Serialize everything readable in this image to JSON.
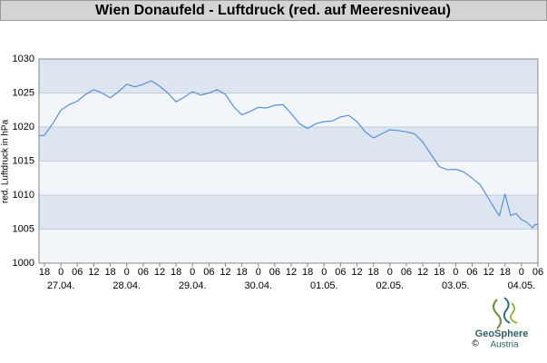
{
  "chart_data": {
    "type": "line",
    "title": "Wien Donaufeld - Luftdruck (red. auf Meeresniveau)",
    "y_label": "red. Luftdruck in hPa",
    "x": [
      -2,
      0,
      3,
      6,
      9,
      12,
      15,
      18,
      21,
      24,
      27,
      30,
      33,
      36,
      39,
      42,
      45,
      48,
      51,
      54,
      57,
      60,
      63,
      66,
      69,
      72,
      75,
      78,
      81,
      84,
      87,
      90,
      93,
      96,
      99,
      102,
      105,
      108,
      111,
      114,
      117,
      120,
      123,
      126,
      129,
      132,
      135,
      138,
      141,
      144,
      147,
      150,
      153,
      156,
      159,
      162,
      165,
      166,
      168,
      170,
      172,
      174,
      176,
      178,
      179,
      180
    ],
    "series": [
      {
        "name": "Luftdruck",
        "color": "#5b8fd8",
        "values": [
          1018.7,
          1018.8,
          1020.5,
          1022.5,
          1023.3,
          1023.8,
          1024.8,
          1025.5,
          1025.0,
          1024.3,
          1025.2,
          1026.3,
          1025.9,
          1026.3,
          1026.8,
          1026.0,
          1025.0,
          1023.7,
          1024.4,
          1025.2,
          1024.7,
          1025.0,
          1025.5,
          1024.8,
          1023.0,
          1021.8,
          1022.3,
          1022.9,
          1022.8,
          1023.2,
          1023.3,
          1022.0,
          1020.5,
          1019.8,
          1020.5,
          1020.8,
          1020.9,
          1021.5,
          1021.7,
          1020.8,
          1019.3,
          1018.4,
          1019.0,
          1019.6,
          1019.5,
          1019.3,
          1019.0,
          1017.8,
          1016.0,
          1014.2,
          1013.7,
          1013.8,
          1013.4,
          1012.5,
          1011.5,
          1009.5,
          1007.5,
          1007.0,
          1010.2,
          1007.0,
          1007.3,
          1006.4,
          1006.0,
          1005.2,
          1005.7,
          1005.6
        ]
      }
    ],
    "xlim": [
      -2,
      180
    ],
    "ylim": [
      1000,
      1030
    ],
    "yticks": [
      1000,
      1005,
      1010,
      1015,
      1020,
      1025,
      1030
    ],
    "xticks": [
      {
        "value": 0,
        "label": "18"
      },
      {
        "value": 6,
        "label": "0"
      },
      {
        "value": 12,
        "label": "06"
      },
      {
        "value": 18,
        "label": "12"
      },
      {
        "value": 24,
        "label": "18"
      },
      {
        "value": 30,
        "label": "0"
      },
      {
        "value": 36,
        "label": "06"
      },
      {
        "value": 42,
        "label": "12"
      },
      {
        "value": 48,
        "label": "18"
      },
      {
        "value": 54,
        "label": "0"
      },
      {
        "value": 60,
        "label": "06"
      },
      {
        "value": 66,
        "label": "12"
      },
      {
        "value": 72,
        "label": "18"
      },
      {
        "value": 78,
        "label": "0"
      },
      {
        "value": 84,
        "label": "06"
      },
      {
        "value": 90,
        "label": "12"
      },
      {
        "value": 96,
        "label": "18"
      },
      {
        "value": 102,
        "label": "0"
      },
      {
        "value": 108,
        "label": "06"
      },
      {
        "value": 114,
        "label": "12"
      },
      {
        "value": 120,
        "label": "18"
      },
      {
        "value": 126,
        "label": "0"
      },
      {
        "value": 132,
        "label": "06"
      },
      {
        "value": 138,
        "label": "12"
      },
      {
        "value": 144,
        "label": "18"
      },
      {
        "value": 150,
        "label": "0"
      },
      {
        "value": 156,
        "label": "06"
      },
      {
        "value": 162,
        "label": "12"
      },
      {
        "value": 168,
        "label": "18"
      },
      {
        "value": 174,
        "label": "0"
      },
      {
        "value": 180,
        "label": "06"
      }
    ],
    "date_labels": [
      {
        "value": 6,
        "label": "27.04."
      },
      {
        "value": 30,
        "label": "28.04."
      },
      {
        "value": 54,
        "label": "29.04."
      },
      {
        "value": 78,
        "label": "30.04."
      },
      {
        "value": 102,
        "label": "01.05."
      },
      {
        "value": 126,
        "label": "02.05."
      },
      {
        "value": 150,
        "label": "03.05."
      },
      {
        "value": 174,
        "label": "04.05."
      }
    ],
    "grid": true
  },
  "logo": {
    "name": "GeoSphere",
    "sub": "Austria",
    "copyright": "©"
  }
}
